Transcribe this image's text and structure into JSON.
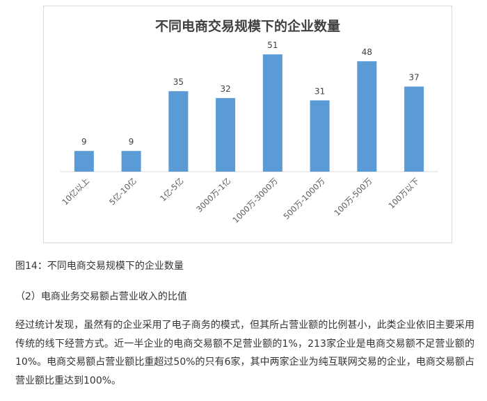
{
  "chart_data": {
    "type": "bar",
    "title": "不同电商交易规模下的企业数量",
    "categories": [
      "10亿以上",
      "5亿-10亿",
      "1亿-5亿",
      "3000万-1亿",
      "1000万-3000万",
      "500万-1000万",
      "100万-500万",
      "100万以下"
    ],
    "values": [
      9,
      9,
      35,
      32,
      51,
      31,
      48,
      37
    ],
    "ylim": [
      0,
      55
    ],
    "grid": false,
    "bar_color": "#5b9bd5"
  },
  "caption": "图14：不同电商交易规模下的企业数量",
  "section_heading": "（2）电商业务交易额占营业收入的比值",
  "paragraph": "经过统计发现，虽然有的企业采用了电子商务的模式，但其所占营业额的比例甚小，此类企业依旧主要采用传统的线下经营方式。近一半企业的电商交易额不足营业额的1%，213家企业是电商交易额不足营业额的10%。电商交易额占营业额比重超过50%的只有6家，其中两家企业为纯互联网交易的企业，电商交易额占营业额比重达到100%。"
}
